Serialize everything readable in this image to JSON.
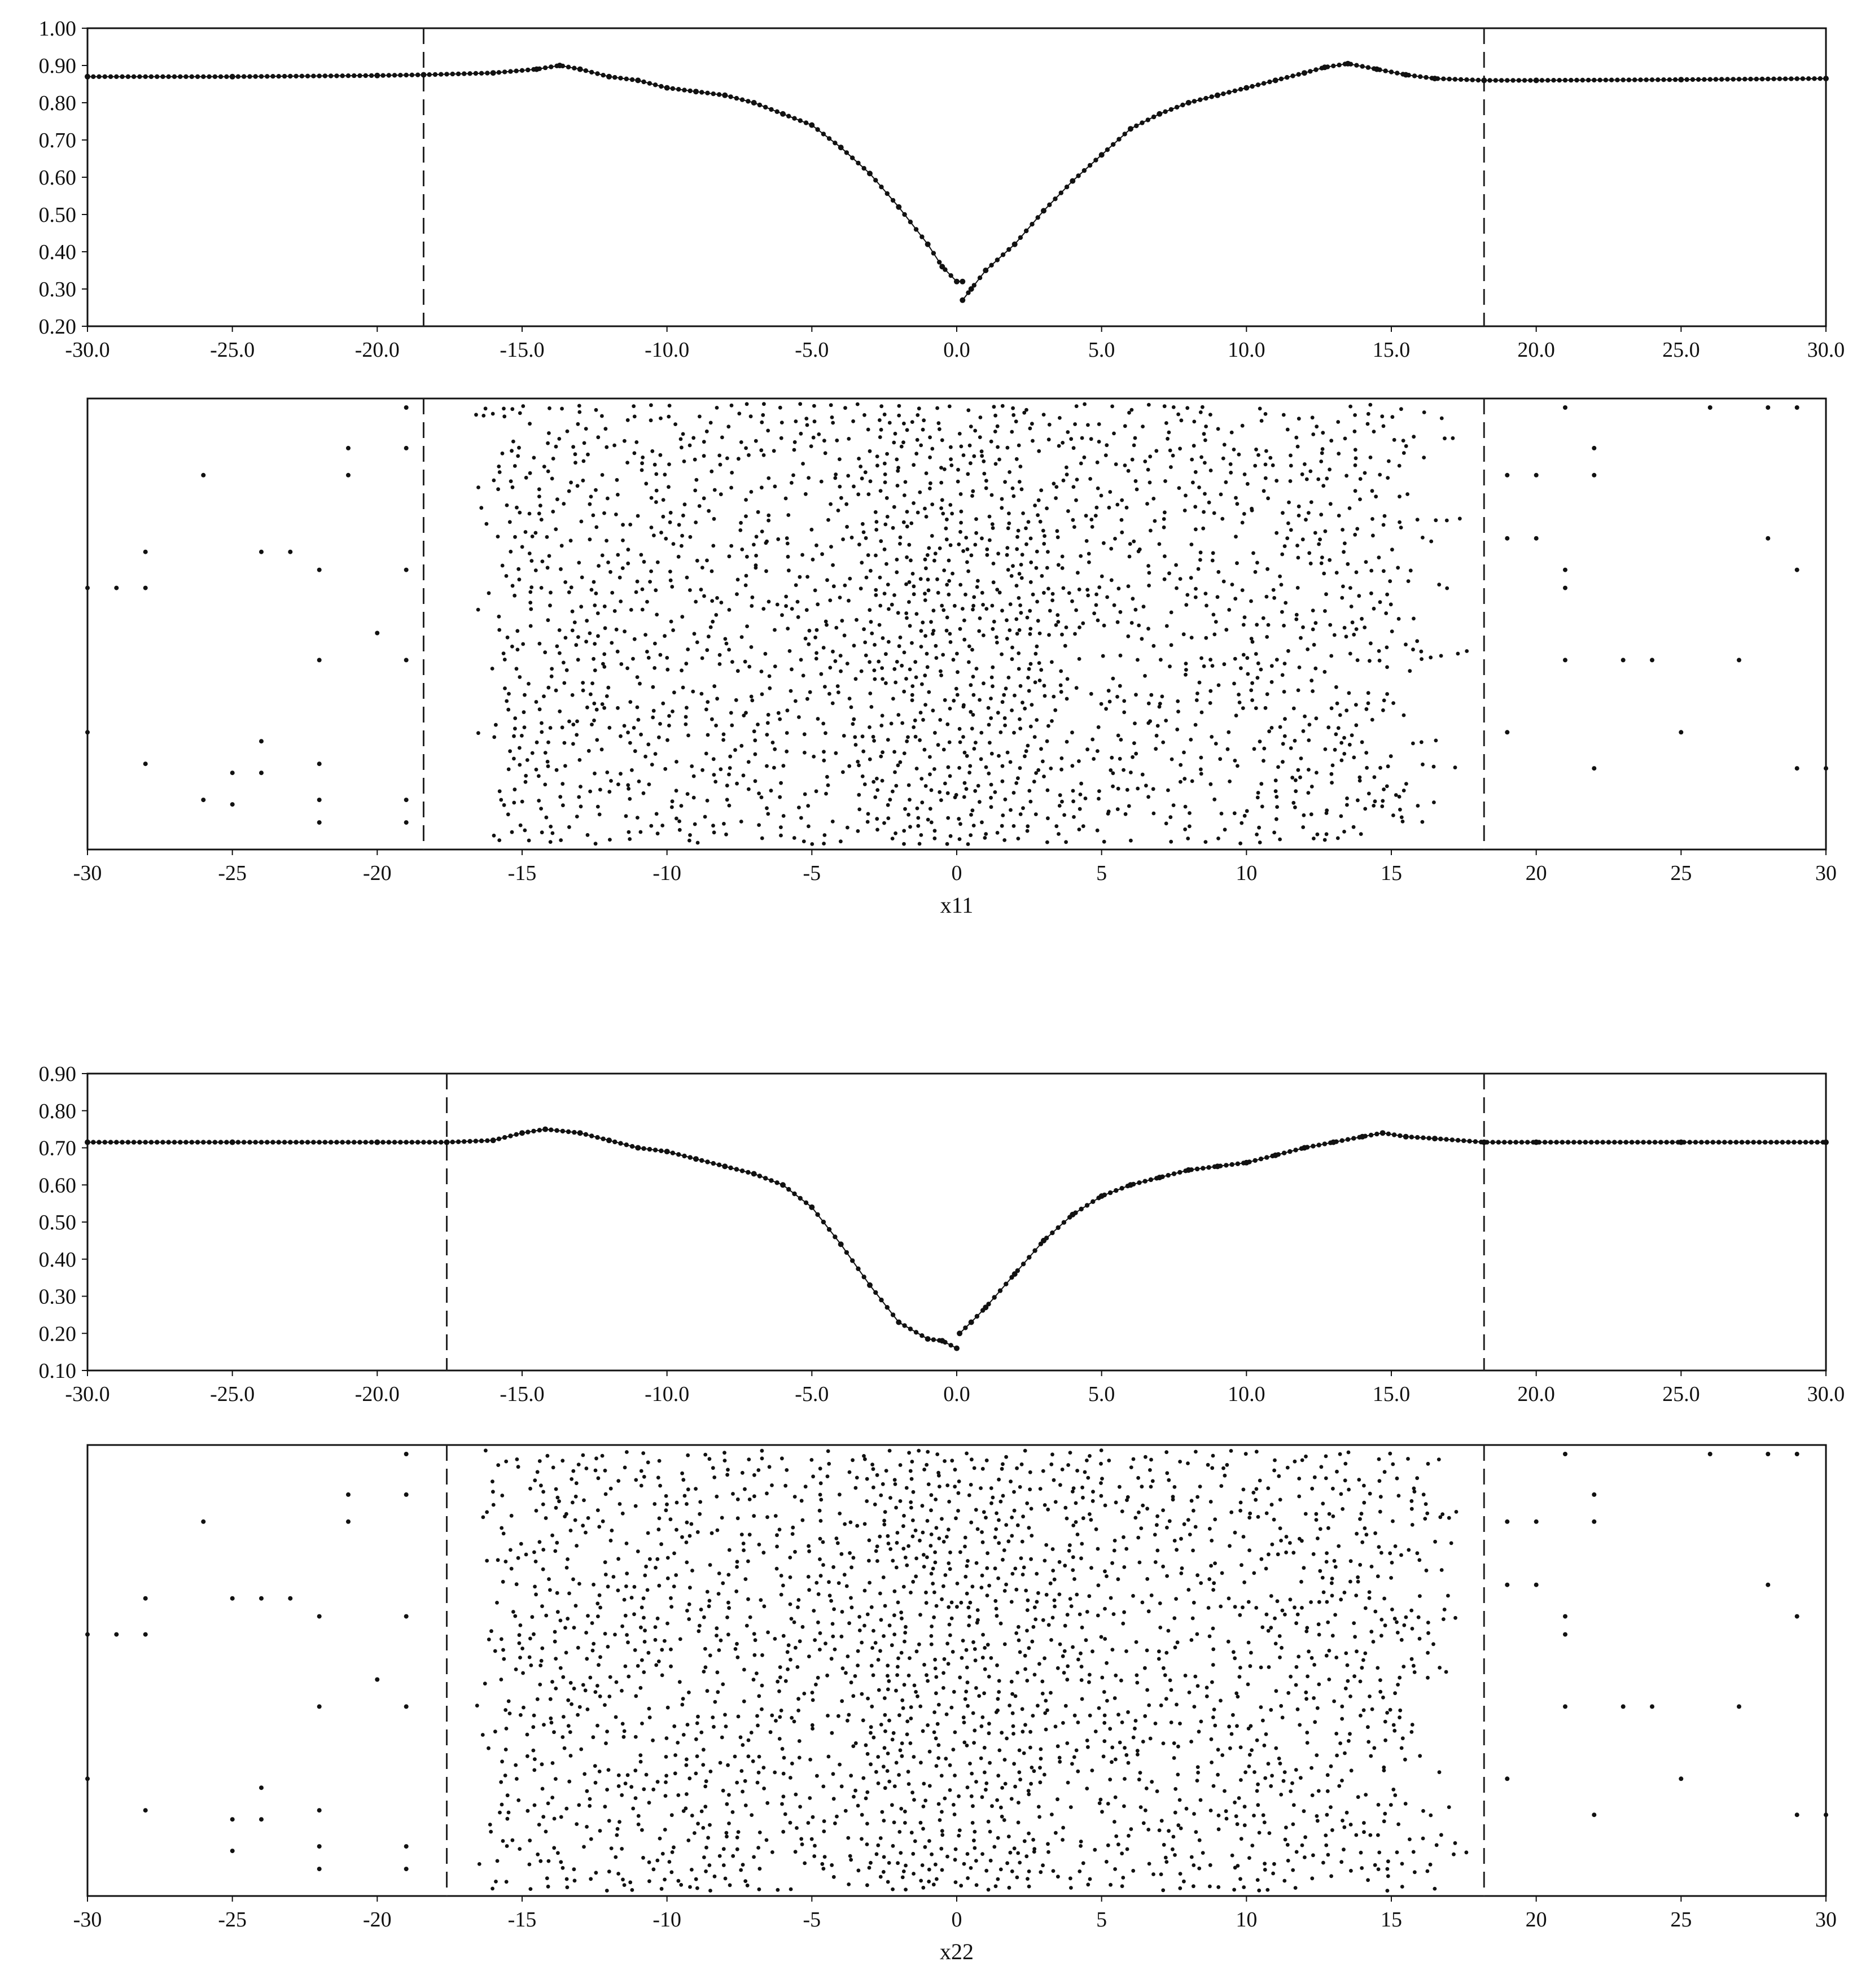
{
  "chart_data": [
    {
      "type": "line",
      "xlim": [
        -30,
        30
      ],
      "ylim": [
        0.2,
        1.0
      ],
      "x_tick_labels": [
        "-30.0",
        "-25.0",
        "-20.0",
        "-15.0",
        "-10.0",
        "-5.0",
        "0.0",
        "5.0",
        "10.0",
        "15.0",
        "20.0",
        "25.0",
        "30.0"
      ],
      "y_tick_labels": [
        "0.20",
        "0.30",
        "0.40",
        "0.50",
        "0.60",
        "0.70",
        "0.80",
        "0.90",
        "1.00"
      ],
      "vlines": [
        -18.4,
        18.2
      ],
      "marker": "dots",
      "series": [
        {
          "x": [
            -30,
            -25,
            -20,
            -18.4,
            -16,
            -14.5,
            -13.7,
            -13,
            -12,
            -11,
            -10,
            -9,
            -8,
            -7,
            -6,
            -5,
            -4,
            -3,
            -2,
            -1,
            -0.5,
            0,
            0.2
          ],
          "values": [
            0.87,
            0.87,
            0.873,
            0.875,
            0.88,
            0.89,
            0.9,
            0.89,
            0.87,
            0.86,
            0.84,
            0.83,
            0.82,
            0.8,
            0.77,
            0.74,
            0.68,
            0.61,
            0.52,
            0.42,
            0.36,
            0.32,
            0.32
          ]
        },
        {
          "x": [
            0.2,
            0.5,
            1,
            2,
            3,
            4,
            5,
            6,
            7,
            8,
            9,
            10,
            11,
            12,
            12.7,
            13.5,
            14.5,
            15.5,
            16.5,
            18.2,
            20,
            25,
            30
          ],
          "values": [
            0.27,
            0.3,
            0.35,
            0.42,
            0.51,
            0.59,
            0.66,
            0.73,
            0.77,
            0.8,
            0.82,
            0.84,
            0.86,
            0.88,
            0.895,
            0.905,
            0.89,
            0.875,
            0.865,
            0.86,
            0.86,
            0.862,
            0.865
          ]
        }
      ]
    },
    {
      "type": "scatter",
      "xlim": [
        -30,
        30
      ],
      "xlabel": "x11",
      "x_tick_labels": [
        "-30",
        "-25",
        "-20",
        "-15",
        "-10",
        "-5",
        "0",
        "5",
        "10",
        "15",
        "20",
        "25",
        "30"
      ],
      "vlines": [
        -18.4,
        18.2
      ],
      "outliers_left": [
        [
          -19,
          0.02
        ],
        [
          -21,
          0.11
        ],
        [
          -19,
          0.11
        ],
        [
          -26,
          0.17
        ],
        [
          -21,
          0.17
        ],
        [
          -28,
          0.34
        ],
        [
          -24,
          0.34
        ],
        [
          -23,
          0.34
        ],
        [
          -22,
          0.38
        ],
        [
          -19,
          0.38
        ],
        [
          -30,
          0.42
        ],
        [
          -29,
          0.42
        ],
        [
          -28,
          0.42
        ],
        [
          -20,
          0.52
        ],
        [
          -22,
          0.58
        ],
        [
          -19,
          0.58
        ],
        [
          -30,
          0.74
        ],
        [
          -24,
          0.76
        ],
        [
          -28,
          0.81
        ],
        [
          -25,
          0.83
        ],
        [
          -24,
          0.83
        ],
        [
          -22,
          0.81
        ],
        [
          -26,
          0.89
        ],
        [
          -25,
          0.9
        ],
        [
          -22,
          0.89
        ],
        [
          -19,
          0.89
        ],
        [
          -22,
          0.94
        ],
        [
          -19,
          0.94
        ]
      ],
      "outliers_right": [
        [
          21,
          0.02
        ],
        [
          26,
          0.02
        ],
        [
          28,
          0.02
        ],
        [
          29,
          0.02
        ],
        [
          22,
          0.11
        ],
        [
          19,
          0.17
        ],
        [
          20,
          0.17
        ],
        [
          22,
          0.17
        ],
        [
          19,
          0.31
        ],
        [
          20,
          0.31
        ],
        [
          28,
          0.31
        ],
        [
          21,
          0.38
        ],
        [
          29,
          0.38
        ],
        [
          21,
          0.42
        ],
        [
          21,
          0.58
        ],
        [
          23,
          0.58
        ],
        [
          24,
          0.58
        ],
        [
          27,
          0.58
        ],
        [
          19,
          0.74
        ],
        [
          25,
          0.74
        ],
        [
          22,
          0.82
        ],
        [
          29,
          0.82
        ],
        [
          30,
          0.82
        ]
      ]
    },
    {
      "type": "line",
      "xlim": [
        -30,
        30
      ],
      "ylim": [
        0.1,
        0.9
      ],
      "x_tick_labels": [
        "-30.0",
        "-25.0",
        "-20.0",
        "-15.0",
        "-10.0",
        "-5.0",
        "0.0",
        "5.0",
        "10.0",
        "15.0",
        "20.0",
        "25.0",
        "30.0"
      ],
      "y_tick_labels": [
        "0.10",
        "0.20",
        "0.30",
        "0.40",
        "0.50",
        "0.60",
        "0.70",
        "0.80",
        "0.90"
      ],
      "vlines": [
        -17.6,
        18.2
      ],
      "marker": "dots",
      "series": [
        {
          "x": [
            -30,
            -25,
            -20,
            -17.6,
            -16,
            -15,
            -14.2,
            -13,
            -12,
            -11,
            -10,
            -9,
            -8,
            -7,
            -6,
            -5,
            -4,
            -3,
            -2,
            -1,
            -0.5,
            0
          ],
          "values": [
            0.715,
            0.715,
            0.715,
            0.715,
            0.72,
            0.74,
            0.75,
            0.74,
            0.72,
            0.7,
            0.69,
            0.67,
            0.65,
            0.63,
            0.6,
            0.54,
            0.44,
            0.33,
            0.23,
            0.185,
            0.18,
            0.16
          ]
        },
        {
          "x": [
            0.1,
            0.5,
            1,
            2,
            3,
            4,
            5,
            6,
            7,
            8,
            9,
            10,
            11,
            12,
            13,
            14,
            14.7,
            15.5,
            16.5,
            18.2,
            20,
            25,
            30
          ],
          "values": [
            0.2,
            0.23,
            0.27,
            0.36,
            0.45,
            0.52,
            0.57,
            0.6,
            0.62,
            0.64,
            0.65,
            0.66,
            0.68,
            0.7,
            0.715,
            0.73,
            0.74,
            0.73,
            0.725,
            0.715,
            0.715,
            0.715,
            0.715
          ]
        }
      ]
    },
    {
      "type": "scatter",
      "xlim": [
        -30,
        30
      ],
      "xlabel": "x22",
      "x_tick_labels": [
        "-30",
        "-25",
        "-20",
        "-15",
        "-10",
        "-5",
        "0",
        "5",
        "10",
        "15",
        "20",
        "25",
        "30"
      ],
      "vlines": [
        -17.6,
        18.2
      ],
      "outliers_left": [
        [
          -19,
          0.02
        ],
        [
          -21,
          0.11
        ],
        [
          -19,
          0.11
        ],
        [
          -26,
          0.17
        ],
        [
          -21,
          0.17
        ],
        [
          -28,
          0.34
        ],
        [
          -25,
          0.34
        ],
        [
          -24,
          0.34
        ],
        [
          -23,
          0.34
        ],
        [
          -22,
          0.38
        ],
        [
          -19,
          0.38
        ],
        [
          -30,
          0.42
        ],
        [
          -29,
          0.42
        ],
        [
          -28,
          0.42
        ],
        [
          -20,
          0.52
        ],
        [
          -22,
          0.58
        ],
        [
          -19,
          0.58
        ],
        [
          -30,
          0.74
        ],
        [
          -24,
          0.76
        ],
        [
          -28,
          0.81
        ],
        [
          -25,
          0.83
        ],
        [
          -24,
          0.83
        ],
        [
          -22,
          0.81
        ],
        [
          -25,
          0.9
        ],
        [
          -22,
          0.89
        ],
        [
          -19,
          0.89
        ],
        [
          -22,
          0.94
        ],
        [
          -19,
          0.94
        ]
      ],
      "outliers_right": [
        [
          21,
          0.02
        ],
        [
          26,
          0.02
        ],
        [
          28,
          0.02
        ],
        [
          29,
          0.02
        ],
        [
          22,
          0.11
        ],
        [
          19,
          0.17
        ],
        [
          20,
          0.17
        ],
        [
          22,
          0.17
        ],
        [
          19,
          0.31
        ],
        [
          20,
          0.31
        ],
        [
          28,
          0.31
        ],
        [
          21,
          0.38
        ],
        [
          29,
          0.38
        ],
        [
          21,
          0.42
        ],
        [
          21,
          0.58
        ],
        [
          23,
          0.58
        ],
        [
          24,
          0.58
        ],
        [
          27,
          0.58
        ],
        [
          19,
          0.74
        ],
        [
          25,
          0.74
        ],
        [
          22,
          0.82
        ],
        [
          29,
          0.82
        ],
        [
          30,
          0.82
        ]
      ]
    }
  ]
}
